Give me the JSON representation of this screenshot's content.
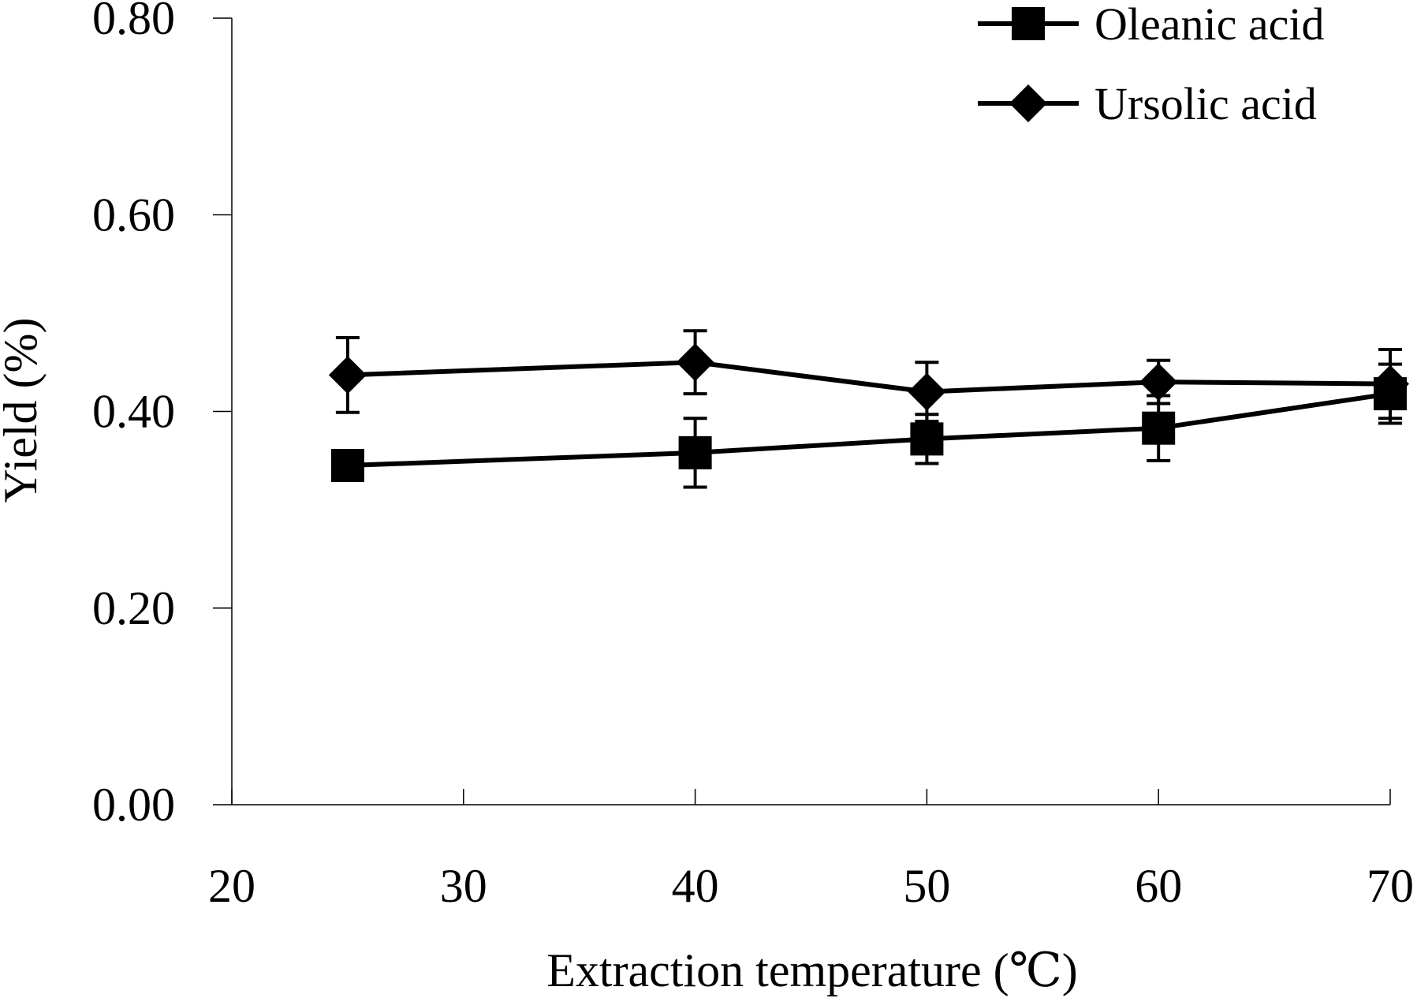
{
  "chart_data": {
    "type": "line",
    "title": "",
    "xlabel": "Extraction temperature (℃)",
    "ylabel": "Yield (%)",
    "xlim": [
      20,
      70
    ],
    "ylim": [
      0.0,
      0.8
    ],
    "xticks": [
      "20",
      "30",
      "40",
      "50",
      "60",
      "70"
    ],
    "xtick_values": [
      20,
      30,
      40,
      50,
      60,
      70
    ],
    "yticks": [
      "0.00",
      "0.20",
      "0.40",
      "0.60",
      "0.80"
    ],
    "ytick_values": [
      0.0,
      0.2,
      0.4,
      0.6,
      0.8
    ],
    "grid": false,
    "legend_position": "top-right",
    "x": [
      25,
      40,
      50,
      60,
      70
    ],
    "series": [
      {
        "name": "Oleanic acid",
        "marker": "square",
        "values": [
          0.345,
          0.358,
          0.372,
          0.383,
          0.418
        ],
        "error": [
          0.0,
          0.035,
          0.025,
          0.033,
          0.03
        ]
      },
      {
        "name": "Ursolic acid",
        "marker": "diamond",
        "values": [
          0.437,
          0.45,
          0.42,
          0.43,
          0.428
        ],
        "error": [
          0.038,
          0.032,
          0.03,
          0.022,
          0.035
        ]
      }
    ],
    "colors": {
      "ink": "#000000",
      "axis": "#000000"
    }
  }
}
